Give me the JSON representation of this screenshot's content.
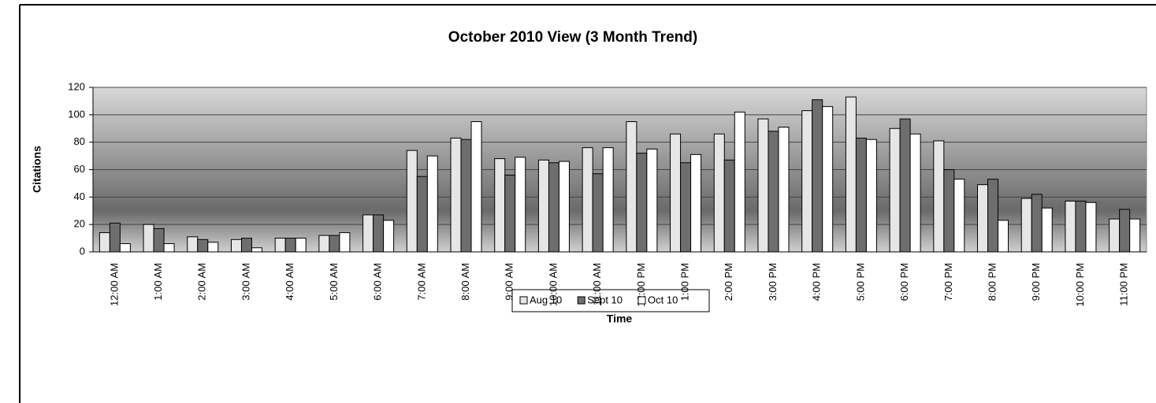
{
  "chart_data": {
    "type": "bar",
    "title": "October 2010 View (3 Month Trend)",
    "y_label": "Citations",
    "x_label": "Time",
    "categories": [
      "12:00 AM",
      "1:00 AM",
      "2:00 AM",
      "3:00 AM",
      "4:00 AM",
      "5:00 AM",
      "6:00 AM",
      "7:00 AM",
      "8:00 AM",
      "9:00 AM",
      "10:00 AM",
      "11:00 AM",
      "12:00 PM",
      "1:00 PM",
      "2:00 PM",
      "3:00 PM",
      "4:00 PM",
      "5:00 PM",
      "6:00 PM",
      "7:00 PM",
      "8:00 PM",
      "9:00 PM",
      "10:00 PM",
      "11:00 PM"
    ],
    "series": [
      {
        "name": "Aug 10",
        "color": "#e6e6e6",
        "values": [
          14,
          20,
          11,
          9,
          10,
          12,
          27,
          74,
          83,
          68,
          67,
          76,
          95,
          86,
          86,
          97,
          103,
          113,
          90,
          81,
          49,
          39,
          37,
          24
        ]
      },
      {
        "name": "Sept 10",
        "color": "#6e6e6e",
        "values": [
          21,
          17,
          9,
          10,
          10,
          12,
          27,
          55,
          82,
          56,
          65,
          57,
          72,
          65,
          67,
          88,
          111,
          83,
          97,
          60,
          53,
          42,
          37,
          31
        ]
      },
      {
        "name": "Oct 10",
        "color": "#ffffff",
        "values": [
          6,
          6,
          7,
          3,
          10,
          14,
          23,
          70,
          95,
          69,
          66,
          76,
          75,
          71,
          102,
          91,
          106,
          82,
          86,
          53,
          23,
          32,
          36,
          24
        ]
      }
    ],
    "ylim": [
      0,
      120
    ],
    "yticks": [
      0,
      20,
      40,
      60,
      80,
      100,
      120
    ],
    "grid": true,
    "legend": "bottom"
  }
}
